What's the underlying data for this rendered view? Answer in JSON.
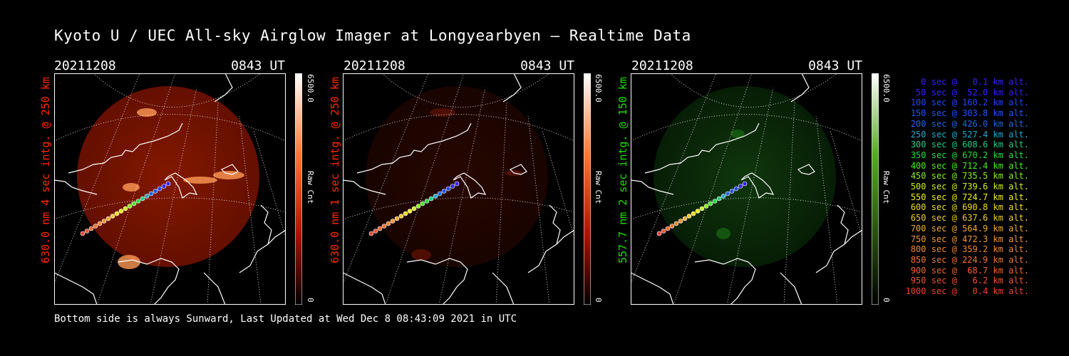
{
  "title": "Kyoto U / UEC All-sky Airglow Imager at Longyearbyen — Realtime Data",
  "footer": "Bottom side is always Sunward, Last Updated at Wed Dec  8 08:43:09 2021 in UTC",
  "panels": [
    {
      "date": "20211208",
      "time": "0843 UT",
      "side_label": "630.0 nm 4 sec intg. @ 250 km",
      "label_color": "#ff2a00",
      "colorbar_max": "6500.0",
      "colorbar_min": "0",
      "colorbar_unit": "Raw Cnt",
      "glow": "strong-red"
    },
    {
      "date": "20211208",
      "time": "0843 UT",
      "side_label": "630.0 nm 1 sec intg. @ 250 km",
      "label_color": "#ff2a00",
      "colorbar_max": "6500.0",
      "colorbar_min": "0",
      "colorbar_unit": "Raw Cnt",
      "glow": "faint-red"
    },
    {
      "date": "20211208",
      "time": "0843 UT",
      "side_label": "557.7 nm 2 sec intg. @ 150 km",
      "label_color": "#22dd00",
      "colorbar_max": "6500.0",
      "colorbar_min": "0",
      "colorbar_unit": "Raw Cnt",
      "glow": "faint-green"
    }
  ],
  "legend": [
    {
      "text": "0 sec @   0.1 km alt.",
      "color": "#3322ff"
    },
    {
      "text": "50 sec @  52.0 km alt.",
      "color": "#3322ff"
    },
    {
      "text": "100 sec @ 160.2 km alt.",
      "color": "#2244ff"
    },
    {
      "text": "150 sec @ 303.8 km alt.",
      "color": "#2255ff"
    },
    {
      "text": "200 sec @ 426.0 km alt.",
      "color": "#2266dd"
    },
    {
      "text": "250 sec @ 527.4 km alt.",
      "color": "#22aacc"
    },
    {
      "text": "300 sec @ 608.6 km alt.",
      "color": "#22cc88"
    },
    {
      "text": "350 sec @ 670.2 km alt.",
      "color": "#22dd44"
    },
    {
      "text": "400 sec @ 712.4 km alt.",
      "color": "#44ee22"
    },
    {
      "text": "450 sec @ 735.5 km alt.",
      "color": "#88ee22"
    },
    {
      "text": "500 sec @ 739.6 km alt.",
      "color": "#ccee22"
    },
    {
      "text": "550 sec @ 724.7 km alt.",
      "color": "#eeee22"
    },
    {
      "text": "600 sec @ 690.8 km alt.",
      "color": "#eedd22"
    },
    {
      "text": "650 sec @ 637.6 km alt.",
      "color": "#eecc33"
    },
    {
      "text": "700 sec @ 564.9 km alt.",
      "color": "#eeaa33"
    },
    {
      "text": "750 sec @ 472.3 km alt.",
      "color": "#ee9933"
    },
    {
      "text": "800 sec @ 359.2 km alt.",
      "color": "#ee8833"
    },
    {
      "text": "850 sec @ 224.9 km alt.",
      "color": "#ee7733"
    },
    {
      "text": "900 sec @  68.7 km alt.",
      "color": "#ee6633"
    },
    {
      "text": "950 sec @   6.2 km alt.",
      "color": "#ee5533"
    },
    {
      "text": "1000 sec @   0.4 km alt.",
      "color": "#ee4433"
    }
  ],
  "colors": {
    "background": "#000000",
    "text": "#ffffff",
    "red_glow": "#8a1a00",
    "green_glow": "#0e3a0a"
  }
}
